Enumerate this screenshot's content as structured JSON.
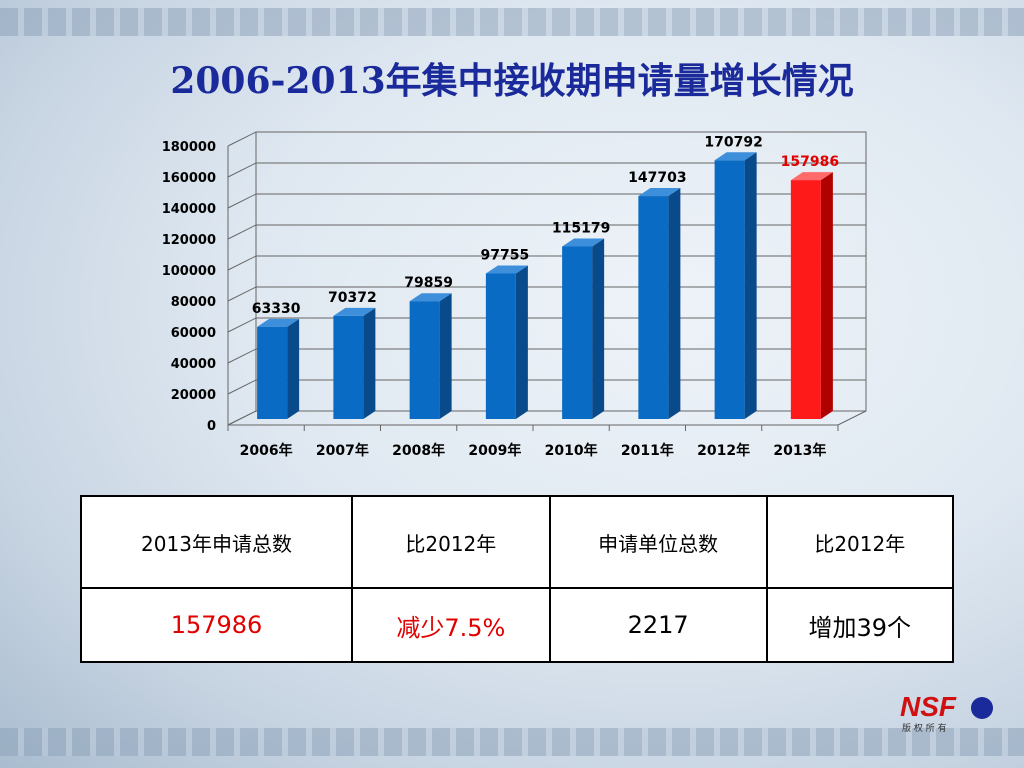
{
  "title": "2006-2013年集中接收期申请量增长情况",
  "chart_data": {
    "type": "bar",
    "categories": [
      "2006年",
      "2007年",
      "2008年",
      "2009年",
      "2010年",
      "2011年",
      "2012年",
      "2013年"
    ],
    "values": [
      63330,
      70372,
      79859,
      97755,
      115179,
      147703,
      170792,
      157986
    ],
    "data_labels": [
      "63330",
      "70372",
      "79859",
      "97755",
      "115179",
      "147703",
      "170792",
      "157986"
    ],
    "yticks": [
      "0",
      "20000",
      "40000",
      "60000",
      "80000",
      "100000",
      "120000",
      "140000",
      "160000",
      "180000"
    ],
    "ylim": [
      0,
      180000
    ],
    "grid": true,
    "title": "",
    "xlabel": "",
    "ylabel": "",
    "colors": {
      "normal": "#0a6bc4",
      "highlight": "#ff1a1a"
    },
    "highlight_index": 7
  },
  "table": {
    "headers": [
      "2013年申请总数",
      "比2012年",
      "申请单位总数",
      "比2012年"
    ],
    "values": [
      "157986",
      "减少7.5%",
      "2217",
      "增加39个"
    ]
  },
  "logo": {
    "text": "NSF",
    "subtext": "版 权 所 有"
  }
}
